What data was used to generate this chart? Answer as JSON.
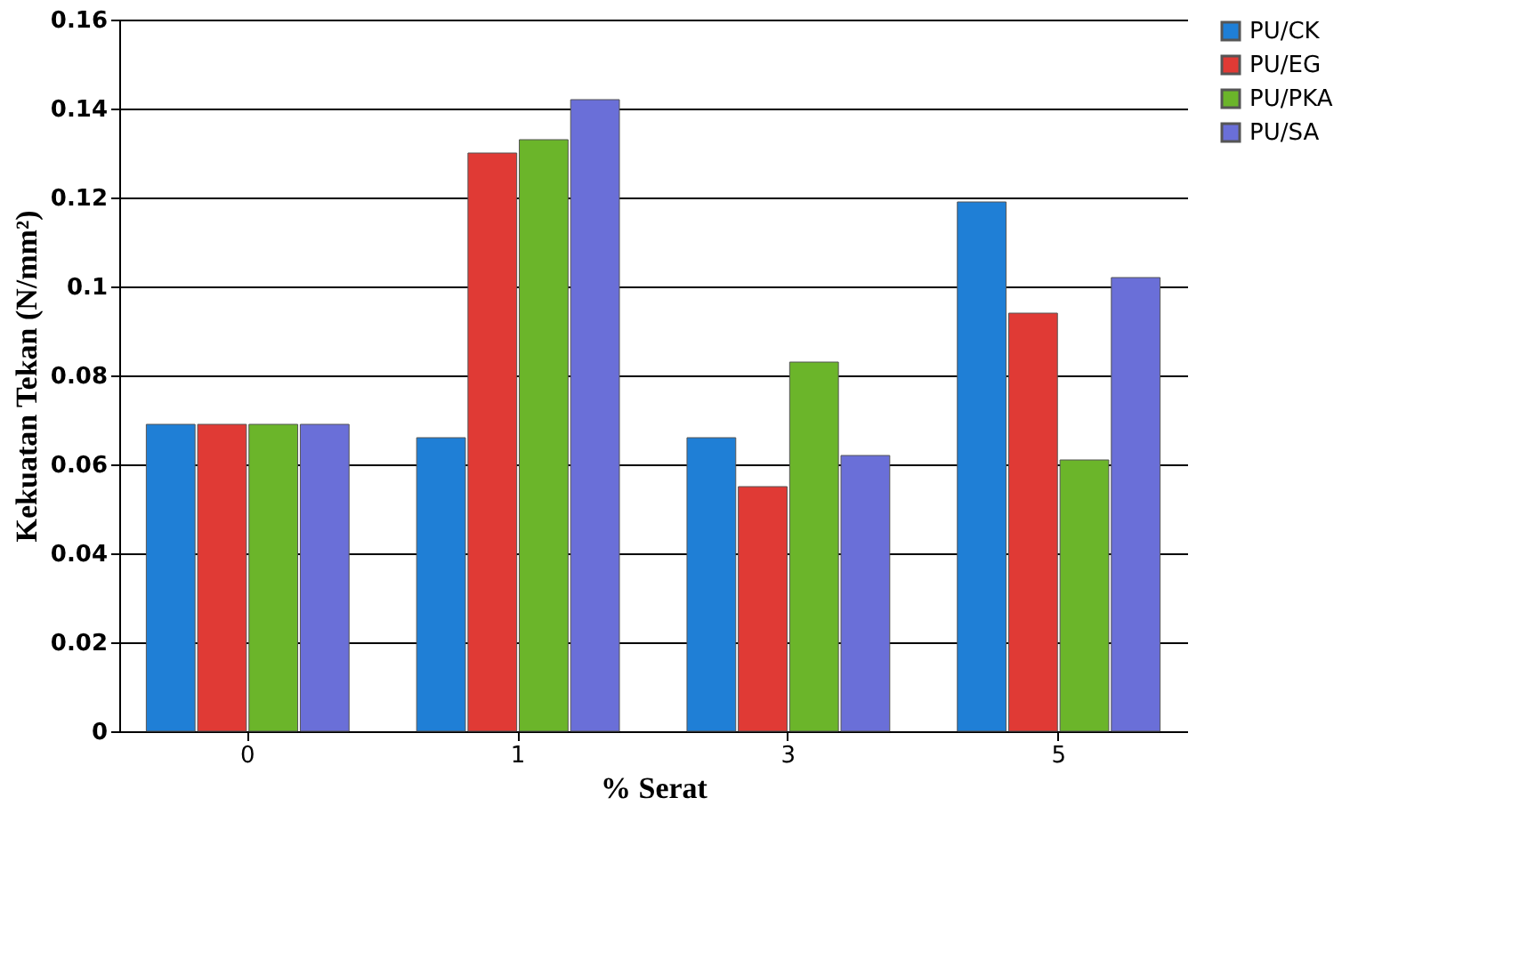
{
  "chart_data": {
    "type": "bar",
    "xlabel": "% Serat",
    "ylabel": "Kekuatan Tekan (N/mm²)",
    "categories": [
      "0",
      "1",
      "3",
      "5"
    ],
    "series": [
      {
        "name": "PU/CK",
        "color": "#1f7fd6",
        "values": [
          0.069,
          0.066,
          0.066,
          0.119
        ]
      },
      {
        "name": "PU/EG",
        "color": "#e03a35",
        "values": [
          0.069,
          0.13,
          0.055,
          0.094
        ]
      },
      {
        "name": "PU/PKA",
        "color": "#6bb52a",
        "values": [
          0.069,
          0.133,
          0.083,
          0.061
        ]
      },
      {
        "name": "PU/SA",
        "color": "#6a6fd8",
        "values": [
          0.069,
          0.142,
          0.062,
          0.102
        ]
      }
    ],
    "ylim": [
      0,
      0.16
    ],
    "yticks": [
      0,
      0.02,
      0.04,
      0.06,
      0.08,
      0.1,
      0.12,
      0.14,
      0.16
    ],
    "grid": "y",
    "legend": "right"
  }
}
